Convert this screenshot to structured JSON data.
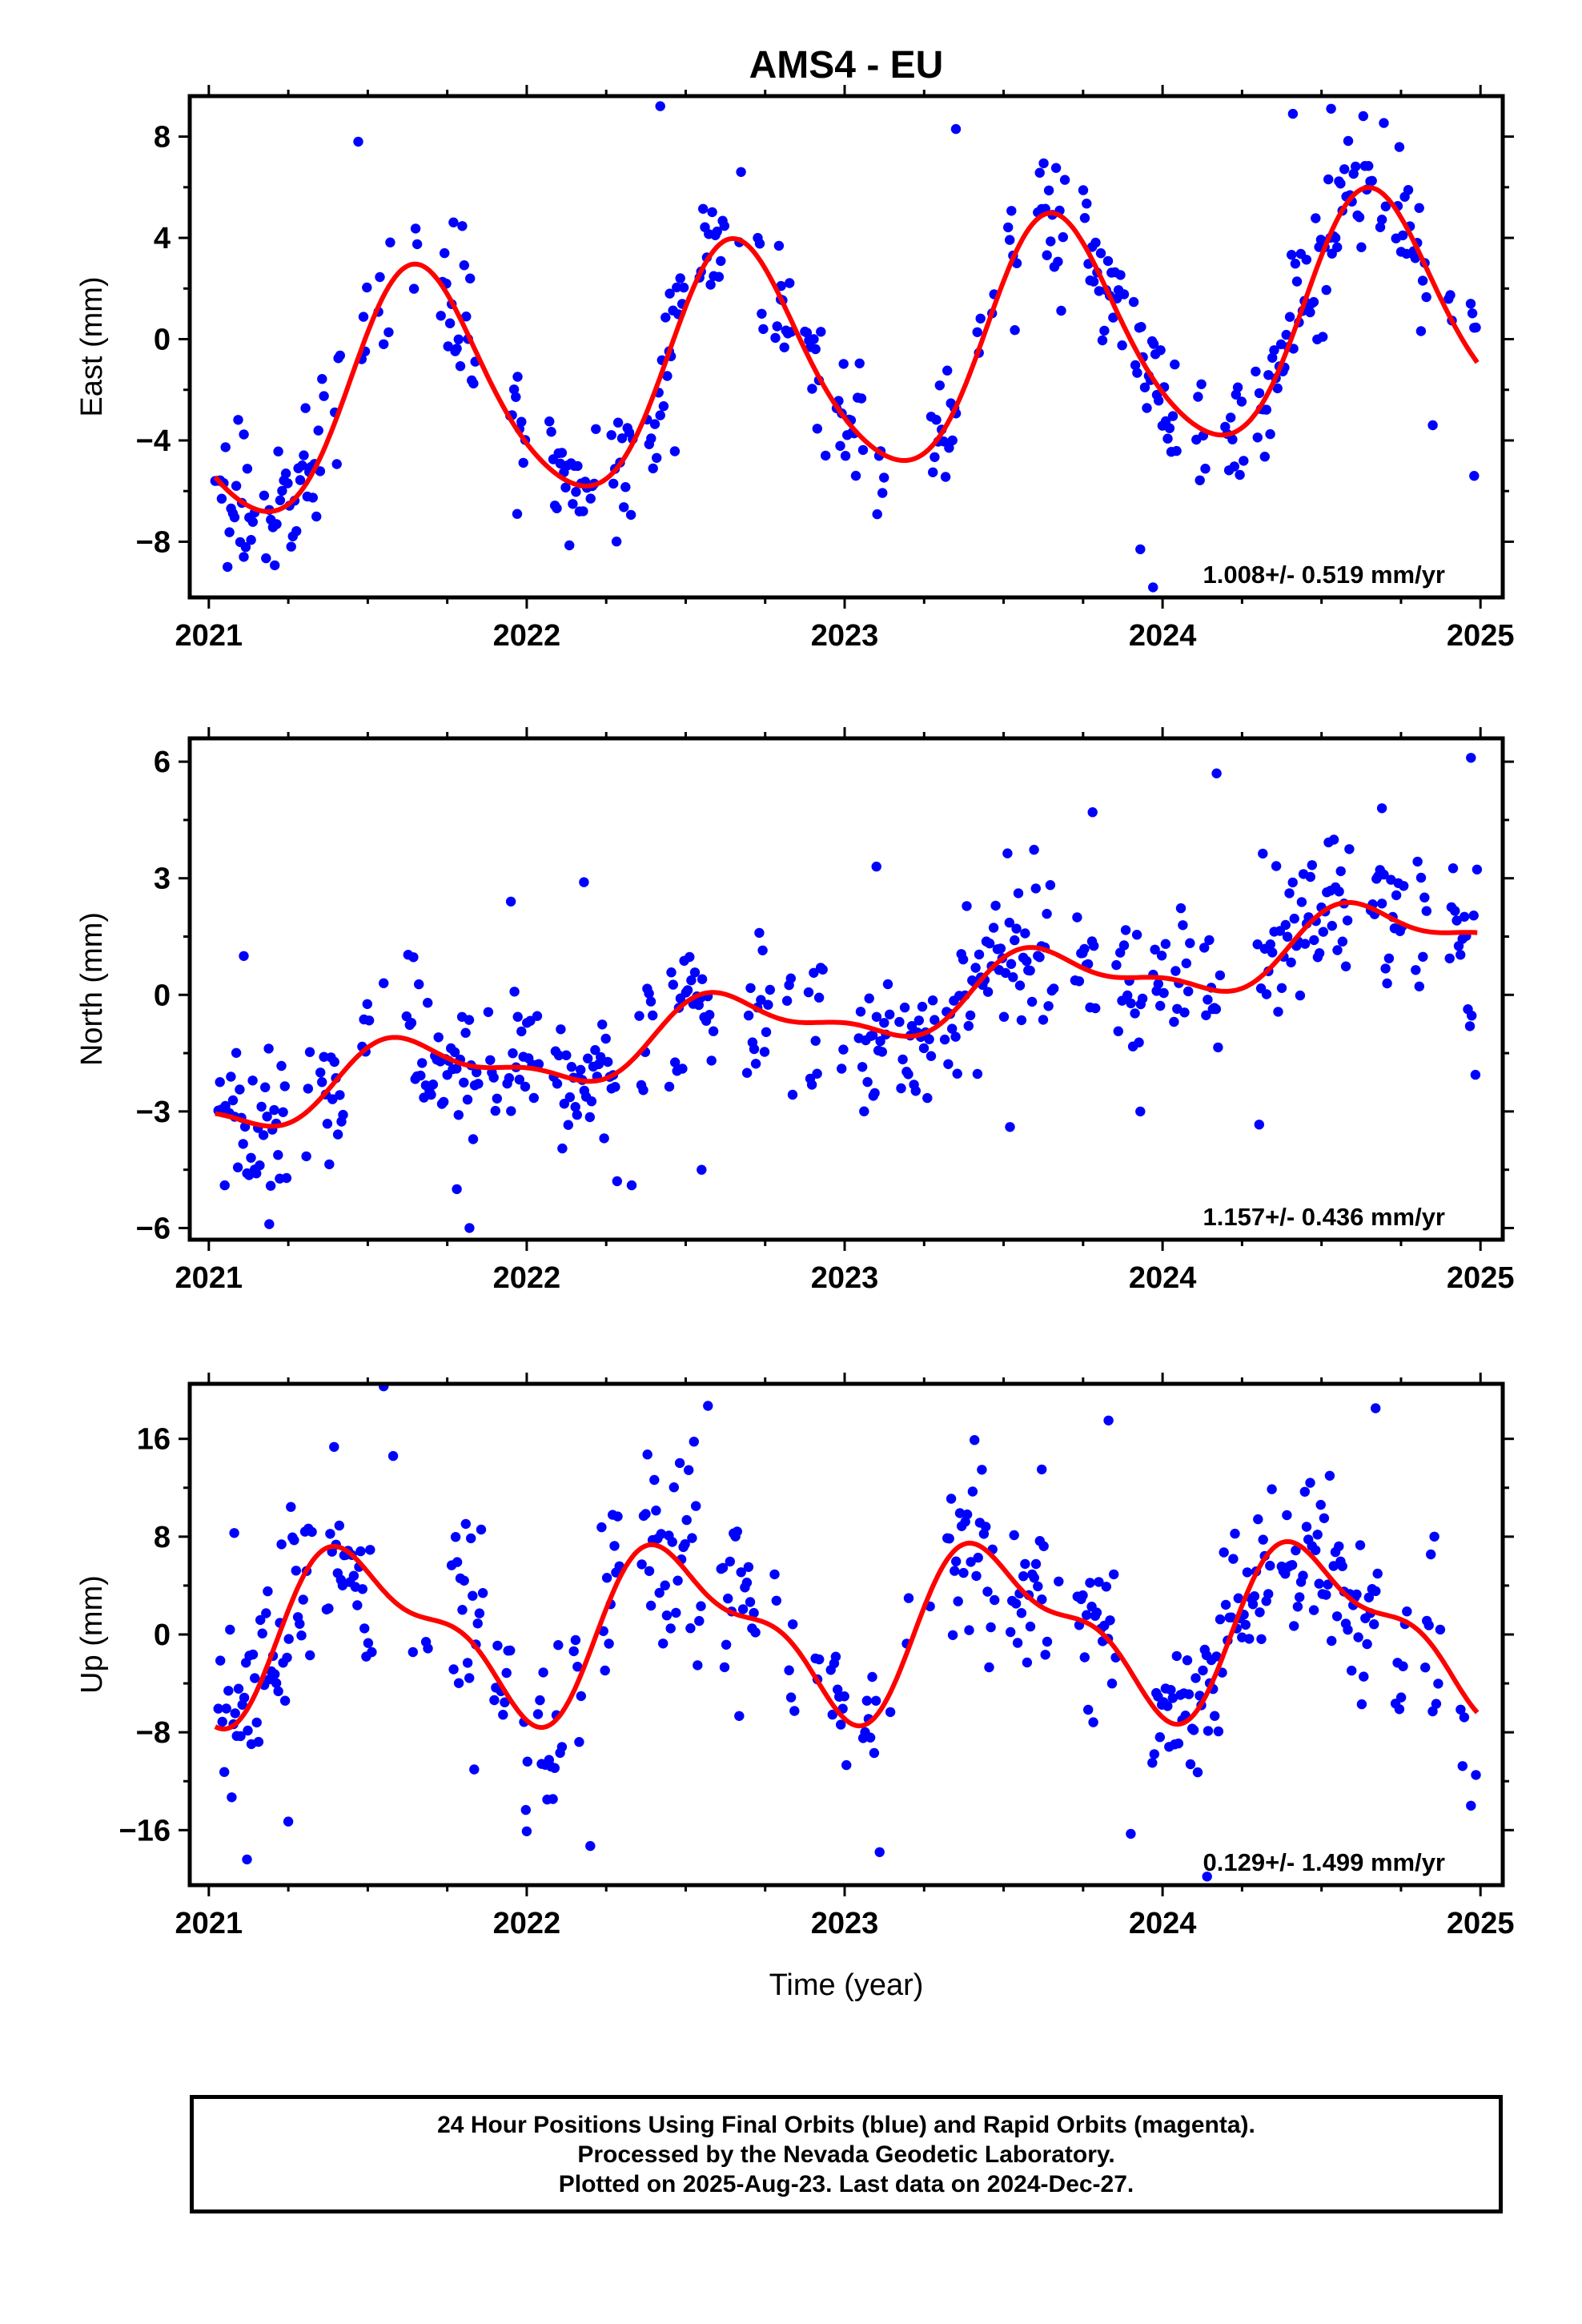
{
  "title": "AMS4 - EU",
  "xlabel": "Time (year)",
  "colors": {
    "points": "#0000ff",
    "fit": "#ff0000",
    "axes": "#000000"
  },
  "chart_data": [
    {
      "type": "scatter",
      "name": "east",
      "ylabel": "East (mm)",
      "xlim": [
        2020.94,
        2025.07
      ],
      "ylim": [
        -10.2,
        9.6
      ],
      "yticks": [
        -8,
        -4,
        0,
        4,
        8
      ],
      "xticks": [
        2021,
        2022,
        2023,
        2024,
        2025
      ],
      "rate_label": "1.008+/- 0.519 mm/yr",
      "model": {
        "offset": -0.76,
        "rate": 1.008,
        "sin": -3.9,
        "cos": -2.45,
        "sin2": 0.55,
        "cos2": 0.1
      },
      "noise": 1.35,
      "anchor_points": [
        {
          "x": 2021.02,
          "y": -5.6
        },
        {
          "x": 2021.11,
          "y": -8.6
        },
        {
          "x": 2021.47,
          "y": 7.8
        },
        {
          "x": 2021.55,
          "y": -0.2
        },
        {
          "x": 2021.97,
          "y": -6.9
        },
        {
          "x": 2022.42,
          "y": 9.2
        },
        {
          "x": 2022.45,
          "y": 1.8
        },
        {
          "x": 2022.8,
          "y": 2.1
        },
        {
          "x": 2022.94,
          "y": -4.6
        },
        {
          "x": 2023.35,
          "y": 8.3
        },
        {
          "x": 2023.93,
          "y": -8.3
        },
        {
          "x": 2023.97,
          "y": -9.8
        },
        {
          "x": 2024.41,
          "y": 8.9
        },
        {
          "x": 2024.53,
          "y": 9.1
        },
        {
          "x": 2024.85,
          "y": -3.4
        },
        {
          "x": 2024.98,
          "y": -5.4
        }
      ],
      "fit_line": true
    },
    {
      "type": "scatter",
      "name": "north",
      "ylabel": "North (mm)",
      "xlim": [
        2020.94,
        2025.07
      ],
      "ylim": [
        -6.3,
        6.6
      ],
      "yticks": [
        -6,
        -3,
        0,
        3,
        6
      ],
      "xticks": [
        2021,
        2022,
        2023,
        2024,
        2025
      ],
      "rate_label": "1.157+/- 0.436 mm/yr",
      "model": {
        "offset": -0.45,
        "rate": 1.157,
        "sin": -0.55,
        "cos": -0.55,
        "sin2": 0.12,
        "cos2": 0.28
      },
      "noise": 0.95,
      "anchor_points": [
        {
          "x": 2021.05,
          "y": -4.9
        },
        {
          "x": 2021.11,
          "y": 1.0
        },
        {
          "x": 2021.19,
          "y": -5.9
        },
        {
          "x": 2021.55,
          "y": 0.3
        },
        {
          "x": 2021.78,
          "y": -5.0
        },
        {
          "x": 2021.82,
          "y": -6.0
        },
        {
          "x": 2021.95,
          "y": 2.4
        },
        {
          "x": 2022.18,
          "y": 2.9
        },
        {
          "x": 2022.33,
          "y": -4.9
        },
        {
          "x": 2022.55,
          "y": -4.5
        },
        {
          "x": 2023.1,
          "y": 3.3
        },
        {
          "x": 2023.09,
          "y": -2.6
        },
        {
          "x": 2023.52,
          "y": -3.4
        },
        {
          "x": 2023.78,
          "y": 4.7
        },
        {
          "x": 2023.93,
          "y": -3.0
        },
        {
          "x": 2024.17,
          "y": 5.7
        },
        {
          "x": 2024.69,
          "y": 4.8
        },
        {
          "x": 2024.97,
          "y": 6.1
        }
      ],
      "fit_line": true
    },
    {
      "type": "scatter",
      "name": "up",
      "ylabel": "Up (mm)",
      "xlim": [
        2020.94,
        2025.07
      ],
      "ylim": [
        -20.5,
        20.5
      ],
      "yticks": [
        -16,
        -8,
        0,
        8,
        16
      ],
      "xticks": [
        2021,
        2022,
        2023,
        2024,
        2025
      ],
      "rate_label": "0.129+/- 1.499 mm/yr",
      "model": {
        "offset": 0.4,
        "rate": 0.129,
        "sin": 0.6,
        "cos": -6.1,
        "sin2": -2.2,
        "cos2": -1.2
      },
      "noise": 3.7,
      "anchor_points": [
        {
          "x": 2021.08,
          "y": 8.3
        },
        {
          "x": 2021.12,
          "y": -18.4
        },
        {
          "x": 2021.25,
          "y": -15.3
        },
        {
          "x": 2021.55,
          "y": 20.3
        },
        {
          "x": 2021.58,
          "y": 14.6
        },
        {
          "x": 2022.0,
          "y": -16.1
        },
        {
          "x": 2022.2,
          "y": -17.3
        },
        {
          "x": 2022.57,
          "y": 18.7
        },
        {
          "x": 2023.11,
          "y": -17.8
        },
        {
          "x": 2023.62,
          "y": 13.5
        },
        {
          "x": 2023.83,
          "y": 17.5
        },
        {
          "x": 2023.9,
          "y": -16.3
        },
        {
          "x": 2024.14,
          "y": -19.8
        },
        {
          "x": 2024.67,
          "y": 18.5
        },
        {
          "x": 2024.97,
          "y": -14.0
        }
      ],
      "fit_line": true
    }
  ],
  "footer": {
    "line1": "24 Hour Positions Using Final Orbits (blue) and Rapid Orbits (magenta).",
    "line2": "Processed by the Nevada Geodetic Laboratory.",
    "line3": "Plotted on 2025-Aug-23. Last data on 2024-Dec-27."
  }
}
